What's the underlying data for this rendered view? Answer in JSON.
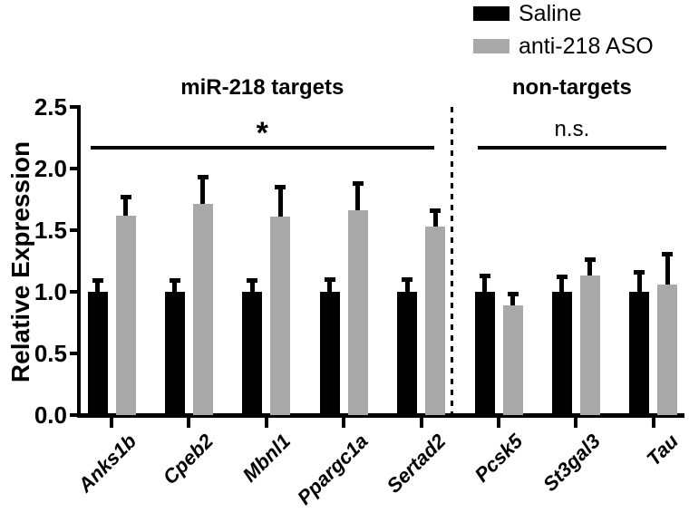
{
  "figure": {
    "background": "#ffffff",
    "text_color": "#000000"
  },
  "legend": {
    "position": "top-right",
    "items": [
      {
        "label": "Saline",
        "color": "#000000"
      },
      {
        "label": "anti-218 ASO",
        "color": "#a9a9a9"
      }
    ]
  },
  "chart_data": {
    "type": "bar",
    "title": "",
    "ylabel": "Relative Expression",
    "xlabel": "",
    "ylim": [
      0,
      2.5
    ],
    "yticks": [
      "0.0",
      "0.5",
      "1.0",
      "1.5",
      "2.0",
      "2.5"
    ],
    "grid": false,
    "legend_position": "top-right",
    "error_bar_color": "#000000",
    "error_bar_direction": "upper-only",
    "categories": [
      "Anks1b",
      "Cpeb2",
      "Mbnl1",
      "Ppargc1a",
      "Sertad2",
      "Pcsk5",
      "St3gal3",
      "Tau"
    ],
    "series": [
      {
        "name": "Saline",
        "color": "#000000",
        "values": [
          1.0,
          1.0,
          1.0,
          1.0,
          1.0,
          1.0,
          1.0,
          1.0
        ],
        "errors_upper": [
          0.11,
          0.11,
          0.11,
          0.12,
          0.12,
          0.15,
          0.14,
          0.18
        ]
      },
      {
        "name": "anti-218 ASO",
        "color": "#a9a9a9",
        "values": [
          1.62,
          1.71,
          1.61,
          1.66,
          1.53,
          0.89,
          1.13,
          1.06
        ],
        "errors_upper": [
          0.17,
          0.24,
          0.26,
          0.24,
          0.15,
          0.11,
          0.15,
          0.26
        ]
      }
    ],
    "groups": [
      {
        "title": "miR-218 targets",
        "annotation": "*",
        "span": [
          0,
          4
        ]
      },
      {
        "title": "non-targets",
        "annotation": "n.s.",
        "span": [
          5,
          7
        ]
      }
    ],
    "separator": {
      "style": "dashed",
      "after_category_index": 4
    }
  }
}
